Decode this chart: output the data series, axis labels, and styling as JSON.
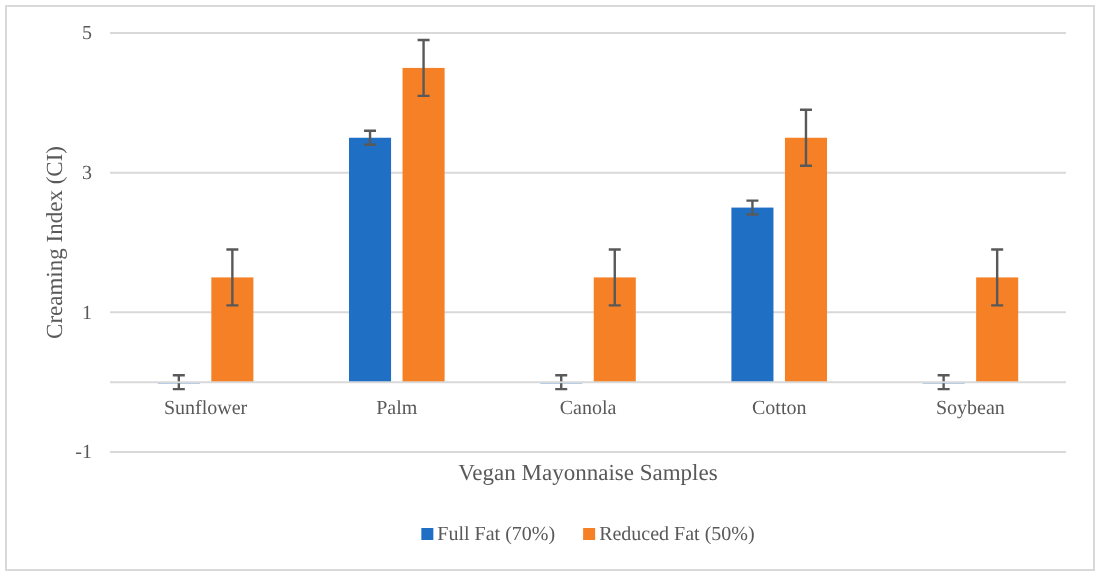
{
  "chart_data": {
    "type": "bar",
    "categories": [
      "Sunflower",
      "Palm",
      "Canola",
      "Cotton",
      "Soybean"
    ],
    "series": [
      {
        "name": "Full Fat (70%)",
        "color": "#1f6fc5",
        "values": [
          0,
          3.5,
          0,
          2.5,
          0
        ],
        "errors": [
          0.1,
          0.1,
          0.1,
          0.1,
          0.1
        ]
      },
      {
        "name": "Reduced Fat (50%)",
        "color": "#f58025",
        "values": [
          1.5,
          4.5,
          1.5,
          3.5,
          1.5
        ],
        "errors": [
          0.4,
          0.4,
          0.4,
          0.4,
          0.4
        ]
      }
    ],
    "xlabel": "Vegan Mayonnaise Samples",
    "ylabel": "Creaming Index (CI)",
    "ylim": [
      -1,
      5
    ],
    "yticks": [
      -1,
      1,
      3,
      5
    ],
    "grid": "y",
    "legend": "bottom"
  }
}
